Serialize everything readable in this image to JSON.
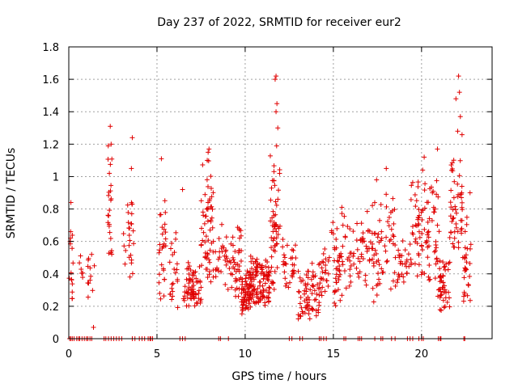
{
  "chart_data": {
    "type": "scatter",
    "title": "Day 237 of 2022, SRMTID for receiver eur2",
    "xlabel": "GPS time / hours",
    "ylabel": "SRMTID / TECUs",
    "xlim": [
      0,
      24
    ],
    "ylim": [
      0,
      1.8
    ],
    "x_ticks": [
      0,
      5,
      10,
      15,
      20
    ],
    "x_tick_labels": [
      "0",
      "5",
      "10",
      "15",
      "20"
    ],
    "y_ticks": [
      0,
      0.2,
      0.4,
      0.6,
      0.8,
      1,
      1.2,
      1.4,
      1.6,
      1.8
    ],
    "y_tick_labels": [
      "0",
      "0.2",
      "0.4",
      "0.6",
      "0.8",
      "1",
      "1.2",
      "1.4",
      "1.6",
      "1.8"
    ],
    "grid": true,
    "marker": "+",
    "color": "#e00000",
    "clusters": [
      {
        "x": [
          0.0,
          0.25
        ],
        "ylo": 0.2,
        "yhi": 0.85,
        "n": 14
      },
      {
        "x": [
          0.55,
          0.8
        ],
        "ylo": 0.35,
        "yhi": 0.55,
        "n": 6
      },
      {
        "x": [
          1.05,
          1.45
        ],
        "ylo": 0.25,
        "yhi": 0.6,
        "n": 12
      },
      {
        "x": [
          2.2,
          2.45
        ],
        "ylo": 0.4,
        "yhi": 1.3,
        "n": 22
      },
      {
        "x": [
          3.1,
          3.7
        ],
        "ylo": 0.35,
        "yhi": 1.05,
        "n": 26
      },
      {
        "x": [
          5.1,
          5.5
        ],
        "ylo": 0.2,
        "yhi": 1.1,
        "n": 28
      },
      {
        "x": [
          5.6,
          6.2
        ],
        "ylo": 0.12,
        "yhi": 0.68,
        "n": 22
      },
      {
        "x": [
          6.5,
          7.5
        ],
        "ylo": 0.18,
        "yhi": 0.5,
        "n": 70
      },
      {
        "x": [
          7.5,
          8.2
        ],
        "ylo": 0.35,
        "yhi": 1.17,
        "n": 60
      },
      {
        "x": [
          8.3,
          9.0
        ],
        "ylo": 0.3,
        "yhi": 0.75,
        "n": 25
      },
      {
        "x": [
          9.0,
          9.8
        ],
        "ylo": 0.2,
        "yhi": 0.85,
        "n": 45
      },
      {
        "x": [
          9.8,
          10.3
        ],
        "ylo": 0.15,
        "yhi": 0.45,
        "n": 60
      },
      {
        "x": [
          10.3,
          11.4
        ],
        "ylo": 0.2,
        "yhi": 0.55,
        "n": 110
      },
      {
        "x": [
          11.4,
          12.0
        ],
        "ylo": 0.3,
        "yhi": 1.3,
        "n": 55
      },
      {
        "x": [
          12.1,
          12.9
        ],
        "ylo": 0.3,
        "yhi": 0.65,
        "n": 30
      },
      {
        "x": [
          13.0,
          14.2
        ],
        "ylo": 0.1,
        "yhi": 0.5,
        "n": 70
      },
      {
        "x": [
          14.2,
          14.9
        ],
        "ylo": 0.25,
        "yhi": 0.65,
        "n": 25
      },
      {
        "x": [
          14.9,
          15.5
        ],
        "ylo": 0.15,
        "yhi": 0.85,
        "n": 40
      },
      {
        "x": [
          15.5,
          16.8
        ],
        "ylo": 0.3,
        "yhi": 0.8,
        "n": 45
      },
      {
        "x": [
          16.8,
          17.6
        ],
        "ylo": 0.2,
        "yhi": 0.95,
        "n": 40
      },
      {
        "x": [
          17.6,
          18.5
        ],
        "ylo": 0.3,
        "yhi": 1.05,
        "n": 35
      },
      {
        "x": [
          18.5,
          19.4
        ],
        "ylo": 0.3,
        "yhi": 0.7,
        "n": 30
      },
      {
        "x": [
          19.4,
          20.3
        ],
        "ylo": 0.35,
        "yhi": 1.1,
        "n": 50
      },
      {
        "x": [
          20.3,
          21.0
        ],
        "ylo": 0.3,
        "yhi": 1.15,
        "n": 40
      },
      {
        "x": [
          20.9,
          21.6
        ],
        "ylo": 0.15,
        "yhi": 0.6,
        "n": 45
      },
      {
        "x": [
          21.6,
          22.3
        ],
        "ylo": 0.4,
        "yhi": 1.35,
        "n": 50
      },
      {
        "x": [
          22.3,
          22.8
        ],
        "ylo": 0.2,
        "yhi": 0.9,
        "n": 30
      }
    ],
    "extra_points": [
      [
        11.7,
        1.6
      ],
      [
        11.75,
        1.62
      ],
      [
        11.8,
        1.45
      ],
      [
        11.75,
        1.4
      ],
      [
        11.85,
        1.3
      ],
      [
        22.1,
        1.62
      ],
      [
        22.15,
        1.52
      ],
      [
        21.95,
        1.48
      ],
      [
        22.2,
        1.37
      ],
      [
        22.05,
        1.28
      ],
      [
        2.35,
        1.31
      ],
      [
        2.4,
        1.2
      ],
      [
        2.3,
        1.02
      ],
      [
        3.6,
        1.24
      ],
      [
        3.55,
        1.05
      ],
      [
        7.95,
        1.17
      ],
      [
        7.9,
        1.15
      ],
      [
        7.85,
        1.1
      ],
      [
        6.45,
        0.92
      ],
      [
        1.4,
        0.07
      ],
      [
        5.25,
        1.11
      ],
      [
        20.9,
        1.17
      ],
      [
        20.15,
        1.12
      ],
      [
        17.45,
        0.98
      ],
      [
        18.0,
        1.05
      ],
      [
        22.75,
        0.9
      ],
      [
        0.1,
        0.62
      ],
      [
        0.12,
        0.84
      ]
    ],
    "zero_points": [
      0.05,
      0.12,
      0.2,
      0.3,
      0.45,
      0.55,
      0.62,
      0.75,
      0.88,
      1.0,
      1.08,
      1.2,
      1.3,
      2.0,
      2.1,
      2.25,
      2.4,
      2.55,
      2.7,
      2.85,
      3.0,
      3.6,
      3.75,
      4.0,
      4.15,
      4.3,
      4.5,
      4.6,
      4.65,
      4.75,
      6.3,
      6.45,
      6.6,
      8.5,
      8.6,
      9.05,
      12.5,
      12.65,
      13.1,
      13.25,
      14.2,
      14.3,
      14.45,
      14.6,
      15.6,
      15.7,
      16.4,
      16.5,
      16.6,
      17.35,
      17.7,
      17.8,
      18.3,
      18.5,
      19.2,
      19.35,
      19.5,
      19.85,
      20.0,
      20.1,
      20.95,
      21.05,
      21.1,
      22.4,
      22.45
    ]
  }
}
